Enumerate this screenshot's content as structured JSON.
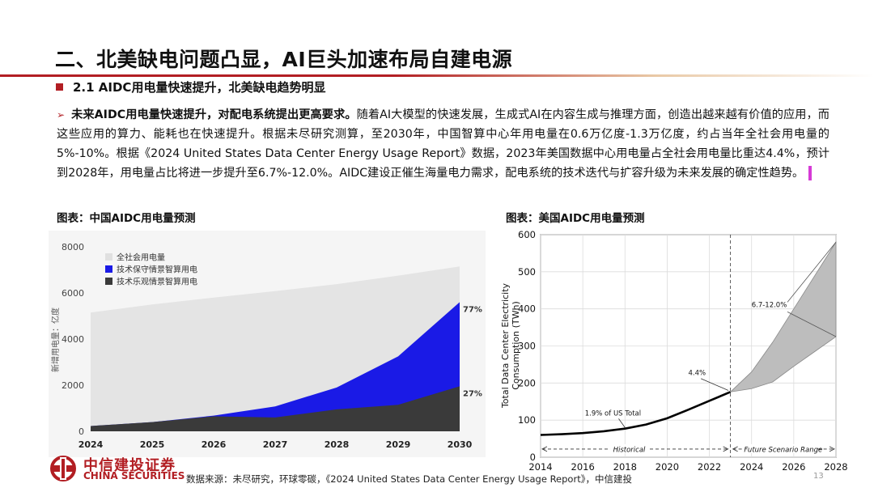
{
  "title": "二、北美缺电问题凸显，AI巨头加速布局自建电源",
  "section": "2.1 AIDC用电量快速提升，北美缺电趋势明显",
  "paragraph": {
    "arrow": "➢",
    "bold": "未来AIDC用电量快速提升，对配电系统提出更高要求。",
    "text": "随着AI大模型的快速发展，生成式AI在内容生成与推理方面，创造出越来越有价值的应用，而这些应用的算力、能耗也在快速提升。根据未尽研究测算，至2030年，中国智算中心年用电量在0.6万亿度-1.3万亿度，约占当年全社会用电量的5%-10%。根据《2024 United States Data Center Energy Usage Report》数据，2023年美国数据中心用电量占全社会用电量比重达4.4%，预计到2028年，用电量占比将进一步提升至6.7%-12.0%。AIDC建设正催生海量电力需求，配电系统的技术迭代与扩容升级为未来发展的确定性趋势。"
  },
  "figure_left_title": "图表：中国AIDC用电量预测",
  "figure_right_title": "图表：美国AIDC用电量预测",
  "colors": {
    "brand_red": "#b21e23",
    "blue": "#1a1ae6",
    "dark": "#3a3a3a",
    "light_gray": "#e4e4e4",
    "band": "#bdbdbd"
  },
  "chart_data": [
    {
      "type": "area",
      "title": "图表：中国AIDC用电量预测",
      "ylabel": "新增用电量：亿度",
      "categories": [
        "2024",
        "2025",
        "2026",
        "2027",
        "2028",
        "2029",
        "2030"
      ],
      "ylim": [
        0,
        8000
      ],
      "yticks": [
        "0",
        "2000",
        "4000",
        "6000",
        "8000"
      ],
      "series": [
        {
          "name": "全社会用电量",
          "values": [
            5150,
            5500,
            5800,
            6080,
            6380,
            6750,
            7150
          ]
        },
        {
          "name": "技术保守情景智算用电",
          "values": [
            230,
            400,
            680,
            1080,
            1900,
            3250,
            5600
          ]
        },
        {
          "name": "技术乐观情景智算用电",
          "values": [
            230,
            400,
            650,
            600,
            950,
            1150,
            1950
          ]
        }
      ],
      "annotations": [
        "77%",
        "27%"
      ]
    },
    {
      "type": "line",
      "title": "图表：美国AIDC用电量预测",
      "ylabel": "Total Data Center Electricity Consumption (TWh)",
      "x": [
        2014,
        2015,
        2016,
        2017,
        2018,
        2019,
        2020,
        2021,
        2022,
        2023
      ],
      "y": [
        60,
        62,
        65,
        70,
        77,
        88,
        105,
        128,
        152,
        176
      ],
      "projection_x": [
        2023,
        2024,
        2025,
        2026,
        2027,
        2028
      ],
      "projection_low": [
        176,
        185,
        203,
        245,
        285,
        325
      ],
      "projection_high": [
        176,
        230,
        310,
        400,
        490,
        580
      ],
      "xticks": [
        "2014",
        "2016",
        "2018",
        "2020",
        "2022",
        "2024",
        "2026",
        "2028"
      ],
      "yticks": [
        "0",
        "100",
        "200",
        "300",
        "400",
        "500",
        "600"
      ],
      "xlim": [
        2014,
        2028
      ],
      "ylim": [
        0,
        600
      ],
      "annotations": [
        "1.9% of US Total",
        "4.4%",
        "6.7-12.0%"
      ],
      "ranges": [
        "Historical",
        "Future Scenario Range"
      ]
    }
  ],
  "logo": {
    "cn": "中信建投证券",
    "en": "CHINA SECURITIES"
  },
  "source": "数据来源：未尽研究，环球零碳，《2024  United States Data Center Energy Usage Report》，中信建投",
  "page_number": "13"
}
